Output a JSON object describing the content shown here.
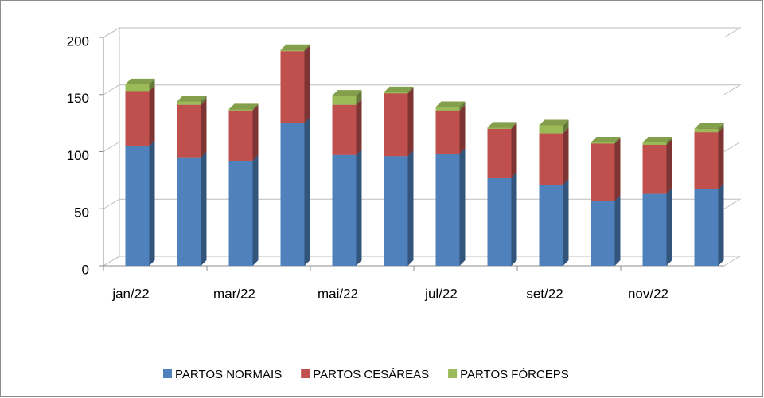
{
  "chart_data": {
    "type": "bar3d_stacked",
    "categories": [
      "jan/22",
      null,
      "mar/22",
      null,
      "mai/22",
      null,
      "jul/22",
      null,
      "set/22",
      null,
      "nov/22",
      null
    ],
    "series": [
      {
        "name": "PARTOS NORMAIS",
        "color": "#4f81bd",
        "values": [
          105,
          95,
          92,
          125,
          97,
          96,
          98,
          77,
          71,
          57,
          63,
          67
        ]
      },
      {
        "name": "PARTOS CESÁREAS",
        "color": "#c0504d",
        "values": [
          48,
          46,
          44,
          63,
          44,
          55,
          38,
          43,
          45,
          50,
          43,
          50
        ]
      },
      {
        "name": "PARTOS FÓRCEPS",
        "color": "#9bbb59",
        "values": [
          6,
          3,
          1,
          1,
          8,
          1,
          3,
          1,
          7,
          1,
          2,
          3
        ]
      }
    ],
    "ylim": [
      0,
      200
    ],
    "yticks": [
      0,
      50,
      100,
      150,
      200
    ],
    "grid": true,
    "legend": "bottom"
  }
}
